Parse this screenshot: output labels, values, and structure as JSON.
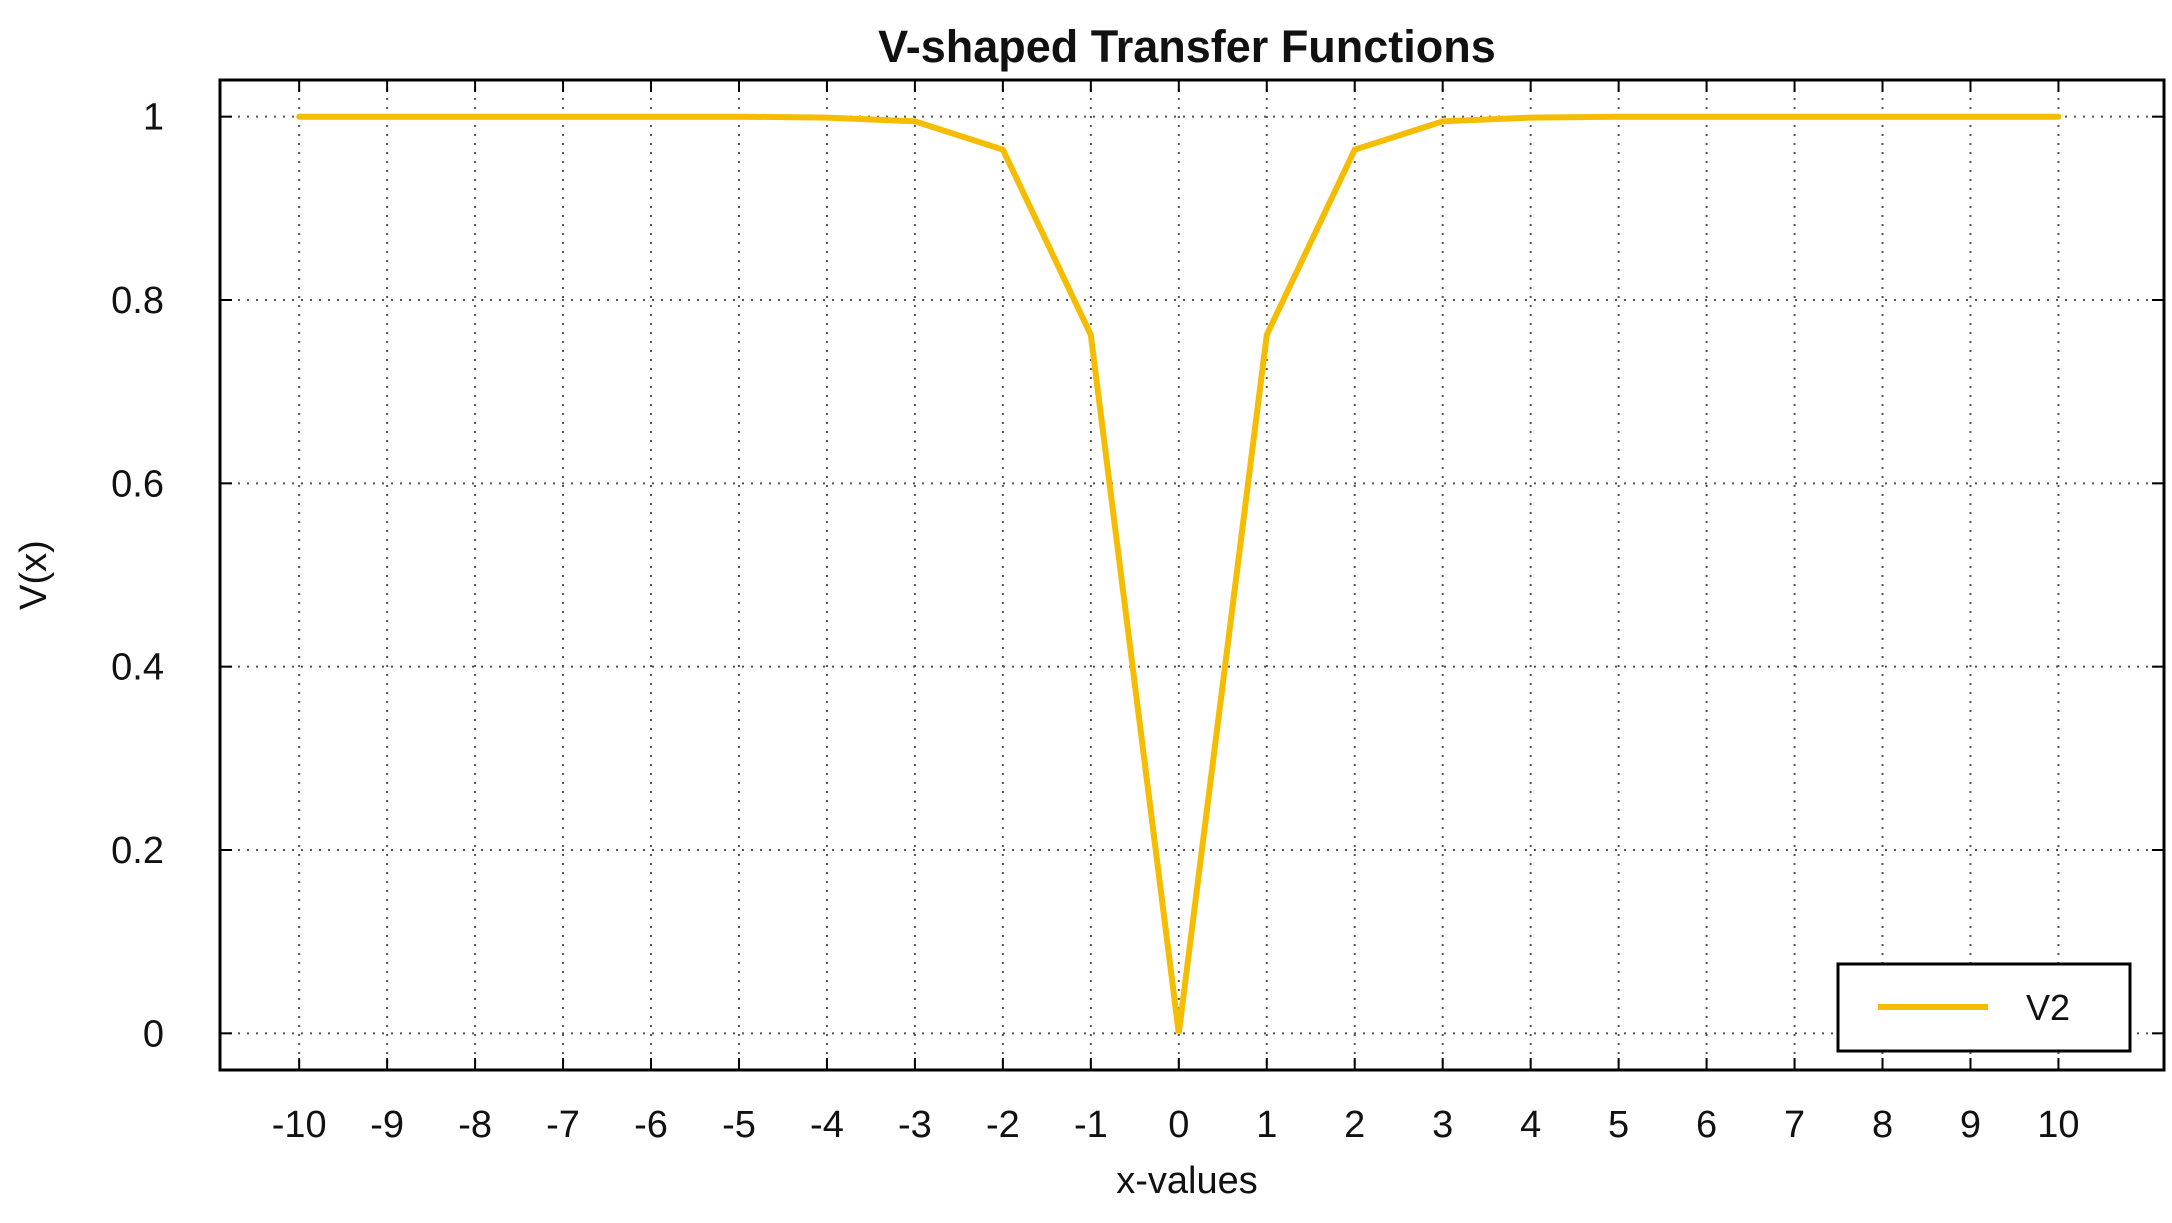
{
  "chart_data": {
    "type": "line",
    "title": "V-shaped Transfer Functions",
    "xlabel": "x-values",
    "ylabel": "V(x)",
    "xlim": [
      -10.9,
      11.2
    ],
    "ylim": [
      -0.04,
      1.04
    ],
    "xticks": [
      -10,
      -9,
      -8,
      -7,
      -6,
      -5,
      -4,
      -3,
      -2,
      -1,
      0,
      1,
      2,
      3,
      4,
      5,
      6,
      7,
      8,
      9,
      10
    ],
    "xtick_labels": [
      "-10",
      "-9",
      "-8",
      "-7",
      "-6",
      "-5",
      "-4",
      "-3",
      "-2",
      "-1",
      "0",
      "1",
      "2",
      "3",
      "4",
      "5",
      "6",
      "7",
      "8",
      "9",
      "10"
    ],
    "yticks": [
      0,
      0.2,
      0.4,
      0.6,
      0.8,
      1
    ],
    "ytick_labels": [
      "0",
      "0.2",
      "0.4",
      "0.6",
      "0.8",
      "1"
    ],
    "grid": true,
    "legend_position": "bottom-right",
    "x": [
      -10,
      -9,
      -8,
      -7,
      -6,
      -5,
      -4,
      -3,
      -2,
      -1,
      0,
      1,
      2,
      3,
      4,
      5,
      6,
      7,
      8,
      9,
      10
    ],
    "series": [
      {
        "name": "V2",
        "color": "#F5BD02",
        "values": [
          1.0,
          1.0,
          1.0,
          1.0,
          1.0,
          1.0,
          0.999,
          0.995,
          0.964,
          0.762,
          0.0,
          0.762,
          0.964,
          0.995,
          0.999,
          1.0,
          1.0,
          1.0,
          1.0,
          1.0,
          1.0
        ]
      }
    ]
  }
}
